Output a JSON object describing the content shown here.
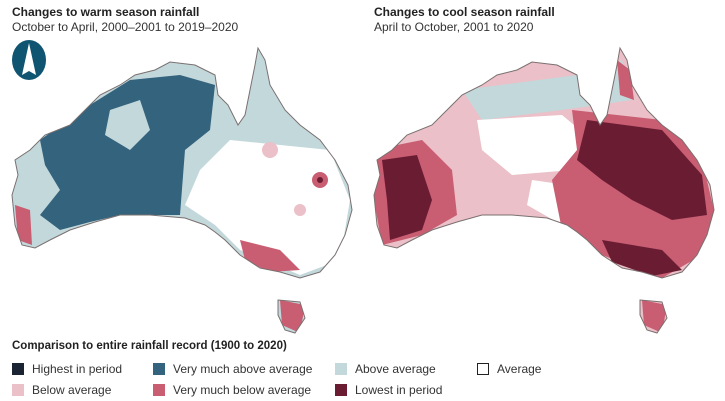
{
  "maps": [
    {
      "title": "Changes to warm season rainfall",
      "subtitle": "October to April, 2000–2001 to 2019–2020"
    },
    {
      "title": "Changes to cool season rainfall",
      "subtitle": "April to October, 2001 to 2020"
    }
  ],
  "north_arrow_icon": "north-arrow-icon",
  "legend": {
    "title": "Comparison to entire rainfall record (1900 to 2020)",
    "items": [
      {
        "label": "Highest in period",
        "color": "#1a2433"
      },
      {
        "label": "Very much above average",
        "color": "#33637d"
      },
      {
        "label": "Above average",
        "color": "#c3d8db"
      },
      {
        "label": "Average",
        "color": "#ffffff"
      },
      {
        "label": "Below average",
        "color": "#ebc0c8"
      },
      {
        "label": "Very much below average",
        "color": "#c95d72"
      },
      {
        "label": "Lowest in period",
        "color": "#6a1c33"
      }
    ]
  }
}
